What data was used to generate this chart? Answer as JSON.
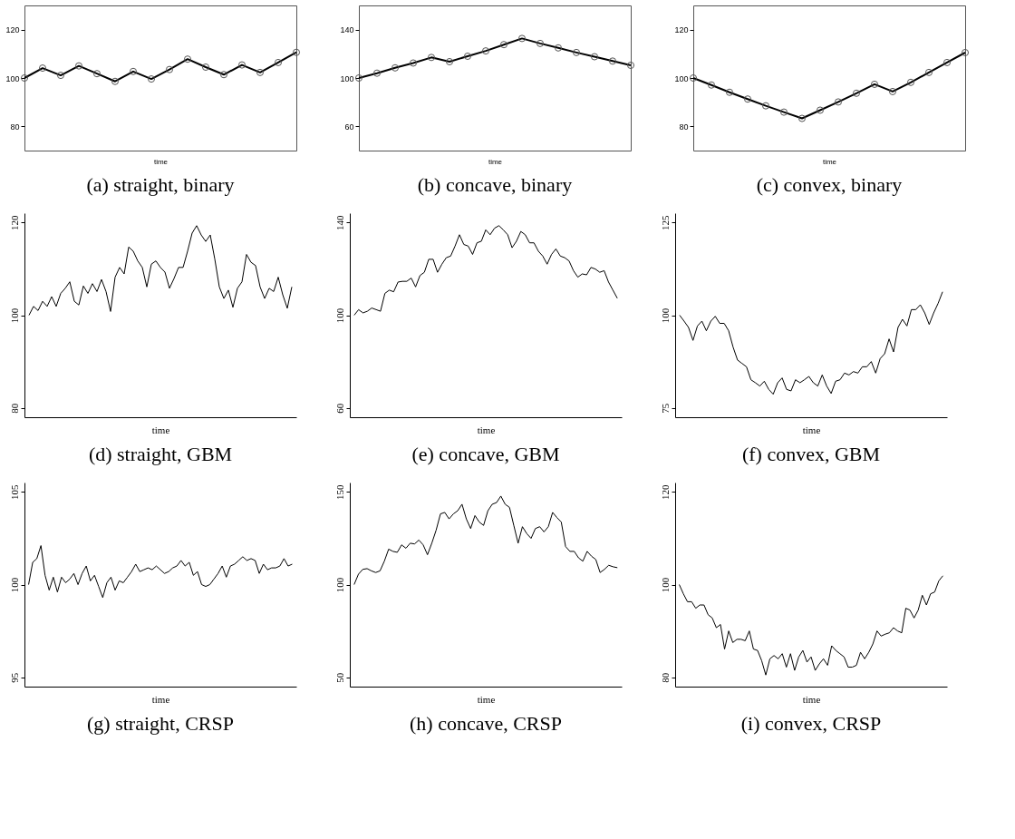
{
  "chart_data": [
    {
      "type": "line",
      "title": "(a) straight, binary",
      "xlabel": "time",
      "categories": [
        null,
        null,
        null,
        null,
        null,
        null,
        null,
        null,
        null,
        null,
        null,
        null,
        null,
        null,
        null,
        null
      ],
      "marker": "circle",
      "tick_labels": "y",
      "grid": false,
      "ylim": [
        70,
        130
      ],
      "yticks": [
        80,
        100,
        120
      ],
      "series": [
        {
          "color": "#000000",
          "values": [
            100,
            104.1,
            101.1,
            105,
            101.8,
            98.6,
            102.7,
            99.6,
            103.5,
            107.8,
            104.5,
            101.4,
            105.4,
            102.3,
            106.4,
            110.6
          ]
        }
      ]
    },
    {
      "type": "line",
      "title": "(b) concave, binary",
      "xlabel": "time",
      "categories": [
        null,
        null,
        null,
        null,
        null,
        null,
        null,
        null,
        null,
        null,
        null,
        null,
        null,
        null,
        null,
        null
      ],
      "marker": "circle",
      "tick_labels": "y",
      "grid": false,
      "ylim": [
        40,
        160
      ],
      "yticks": [
        60,
        100,
        140
      ],
      "series": [
        {
          "color": "#000000",
          "values": [
            100,
            104,
            108.4,
            112.4,
            117,
            113.5,
            118,
            122.4,
            127.6,
            132.7,
            128.6,
            124.9,
            121.1,
            117.6,
            114,
            110.5
          ]
        }
      ]
    },
    {
      "type": "line",
      "title": "(c) convex, binary",
      "xlabel": "time",
      "categories": [
        null,
        null,
        null,
        null,
        null,
        null,
        null,
        null,
        null,
        null,
        null,
        null,
        null,
        null,
        null,
        null
      ],
      "marker": "circle",
      "tick_labels": "y",
      "grid": false,
      "ylim": [
        70,
        130
      ],
      "yticks": [
        80,
        100,
        120
      ],
      "series": [
        {
          "color": "#000000",
          "values": [
            100,
            97.1,
            94.1,
            91.3,
            88.5,
            85.9,
            83.3,
            86.7,
            90.1,
            93.7,
            97.4,
            94.4,
            98.2,
            102.3,
            106.4,
            110.5
          ]
        }
      ]
    },
    {
      "type": "line",
      "title": "(d) straight, GBM",
      "xlabel": "time",
      "categories": [
        null,
        null,
        null,
        null,
        null,
        null,
        null,
        null,
        null,
        null,
        null,
        null,
        null,
        null,
        null,
        null,
        null,
        null,
        null,
        null,
        null,
        null,
        null,
        null,
        null,
        null,
        null,
        null,
        null,
        null,
        null,
        null,
        null,
        null,
        null,
        null,
        null,
        null,
        null,
        null,
        null,
        null,
        null,
        null,
        null,
        null,
        null,
        null,
        null,
        null,
        null,
        null,
        null,
        null,
        null,
        null,
        null,
        null,
        null
      ],
      "tick_labels": "y",
      "grid": false,
      "ylim": [
        78,
        122
      ],
      "yticks": [
        80,
        100,
        120
      ],
      "series": [
        {
          "color": "#000000",
          "values": [
            100,
            101.9,
            101,
            103,
            101.9,
            104,
            101.9,
            104.7,
            105.8,
            107.2,
            103,
            102.2,
            106.3,
            104.7,
            106.8,
            105.1,
            107.7,
            105.1,
            100.8,
            108.2,
            110.3,
            108.9,
            114.7,
            113.8,
            111.7,
            110.3,
            106.1,
            111,
            111.7,
            110.3,
            109.3,
            105.8,
            107.9,
            110.3,
            110.3,
            113.8,
            117.7,
            119.3,
            117.3,
            115.9,
            117.3,
            112.1,
            106.1,
            103.6,
            105.4,
            101.7,
            105.8,
            107.2,
            113.1,
            111.4,
            110.7,
            106.1,
            103.6,
            105.8,
            105.1,
            108.2,
            104.4,
            101.5,
            106.1
          ]
        }
      ]
    },
    {
      "type": "line",
      "title": "(e) concave, GBM",
      "xlabel": "time",
      "categories": [
        null,
        null,
        null,
        null,
        null,
        null,
        null,
        null,
        null,
        null,
        null,
        null,
        null,
        null,
        null,
        null,
        null,
        null,
        null,
        null,
        null,
        null,
        null,
        null,
        null,
        null,
        null,
        null,
        null,
        null,
        null,
        null,
        null,
        null,
        null,
        null,
        null,
        null,
        null,
        null,
        null,
        null,
        null,
        null,
        null,
        null,
        null,
        null,
        null,
        null,
        null,
        null,
        null,
        null,
        null,
        null,
        null,
        null,
        null,
        null,
        null
      ],
      "tick_labels": "y",
      "grid": false,
      "ylim": [
        56,
        144
      ],
      "yticks": [
        60,
        100,
        140
      ],
      "series": [
        {
          "color": "#000000",
          "values": [
            100,
            102.4,
            101,
            101.7,
            103.1,
            102.4,
            101.7,
            109.4,
            110.8,
            110.1,
            114.3,
            114.6,
            114.6,
            116,
            112.2,
            117.1,
            118.5,
            124.1,
            124.1,
            118.5,
            122,
            124.8,
            125.5,
            129.8,
            134.7,
            130.5,
            129.8,
            126.2,
            131.2,
            131.9,
            136.8,
            134.7,
            137.5,
            138.6,
            136.8,
            134.7,
            129.1,
            131.9,
            136.1,
            134.7,
            131.2,
            131.2,
            127.6,
            125.5,
            122,
            126.2,
            128.6,
            125.5,
            124.8,
            123.4,
            119.2,
            116.4,
            117.8,
            117.4,
            120.6,
            119.9,
            118.5,
            119.2,
            114.3,
            110.8,
            107.3
          ]
        }
      ]
    },
    {
      "type": "line",
      "title": "(f) convex, GBM",
      "xlabel": "time",
      "categories": [
        null,
        null,
        null,
        null,
        null,
        null,
        null,
        null,
        null,
        null,
        null,
        null,
        null,
        null,
        null,
        null,
        null,
        null,
        null,
        null,
        null,
        null,
        null,
        null,
        null,
        null,
        null,
        null,
        null,
        null,
        null,
        null,
        null,
        null,
        null,
        null,
        null,
        null,
        null,
        null,
        null,
        null,
        null,
        null,
        null,
        null,
        null,
        null,
        null,
        null,
        null,
        null,
        null,
        null,
        null,
        null,
        null,
        null,
        null,
        null
      ],
      "tick_labels": "y",
      "grid": false,
      "ylim": [
        72.5,
        127.5
      ],
      "yticks": [
        75,
        100,
        125
      ],
      "series": [
        {
          "color": "#000000",
          "values": [
            100,
            98.4,
            96.7,
            93.2,
            97.1,
            98.4,
            95.8,
            98.4,
            99.7,
            97.8,
            97.8,
            95.8,
            91.4,
            87.9,
            87,
            86.1,
            82.6,
            81.8,
            80.9,
            82.2,
            80,
            78.7,
            81.8,
            83.1,
            80,
            79.6,
            82.6,
            81.8,
            82.6,
            83.5,
            81.8,
            80.9,
            83.9,
            80.9,
            78.9,
            82.2,
            82.6,
            84.4,
            83.9,
            84.8,
            84.4,
            86.1,
            86.1,
            87.5,
            84.4,
            88.3,
            89.6,
            93.6,
            90.1,
            96.7,
            98.9,
            97.1,
            101.5,
            101.5,
            102.8,
            100.6,
            97.5,
            100.6,
            103.2,
            106.3
          ]
        }
      ]
    },
    {
      "type": "line",
      "title": "(g) straight, CRSP",
      "xlabel": "time",
      "categories": [
        null,
        null,
        null,
        null,
        null,
        null,
        null,
        null,
        null,
        null,
        null,
        null,
        null,
        null,
        null,
        null,
        null,
        null,
        null,
        null,
        null,
        null,
        null,
        null,
        null,
        null,
        null,
        null,
        null,
        null,
        null,
        null,
        null,
        null,
        null,
        null,
        null,
        null,
        null,
        null,
        null,
        null,
        null,
        null,
        null,
        null,
        null,
        null,
        null,
        null,
        null,
        null,
        null,
        null,
        null,
        null,
        null,
        null,
        null,
        null,
        null,
        null,
        null,
        null,
        null
      ],
      "tick_labels": "y",
      "grid": false,
      "ylim": [
        94.5,
        105.5
      ],
      "yticks": [
        95,
        100,
        105
      ],
      "series": [
        {
          "color": "#000000",
          "values": [
            100,
            101.2,
            101.4,
            102.1,
            100.5,
            99.7,
            100.4,
            99.6,
            100.4,
            100.1,
            100.3,
            100.6,
            100,
            100.6,
            101,
            100.2,
            100.5,
            99.9,
            99.3,
            100.1,
            100.4,
            99.7,
            100.2,
            100.1,
            100.4,
            100.7,
            101.1,
            100.7,
            100.8,
            100.9,
            100.8,
            101,
            100.8,
            100.6,
            100.7,
            100.9,
            101,
            101.3,
            101,
            101.2,
            100.5,
            100.7,
            100,
            99.9,
            100,
            100.3,
            100.6,
            101,
            100.4,
            101,
            101.1,
            101.3,
            101.5,
            101.3,
            101.4,
            101.3,
            100.6,
            101.1,
            100.8,
            100.9,
            100.9,
            101,
            101.4,
            101,
            101.1
          ]
        }
      ]
    },
    {
      "type": "line",
      "title": "(h) concave, CRSP",
      "xlabel": "time",
      "categories": [
        null,
        null,
        null,
        null,
        null,
        null,
        null,
        null,
        null,
        null,
        null,
        null,
        null,
        null,
        null,
        null,
        null,
        null,
        null,
        null,
        null,
        null,
        null,
        null,
        null,
        null,
        null,
        null,
        null,
        null,
        null,
        null,
        null,
        null,
        null,
        null,
        null,
        null,
        null,
        null,
        null,
        null,
        null,
        null,
        null,
        null,
        null,
        null,
        null,
        null,
        null,
        null,
        null,
        null,
        null,
        null,
        null,
        null,
        null,
        null,
        null,
        null
      ],
      "tick_labels": "y",
      "grid": false,
      "ylim": [
        45,
        155
      ],
      "yticks": [
        50,
        100,
        150
      ],
      "series": [
        {
          "color": "#000000",
          "values": [
            100,
            105.6,
            108.2,
            108.6,
            107.4,
            106.5,
            107.4,
            112.6,
            119.1,
            117.9,
            117.4,
            121.4,
            119.6,
            122.3,
            121.9,
            124,
            121.4,
            116.1,
            122.3,
            129.3,
            138.1,
            138.9,
            135.4,
            138.1,
            139.8,
            143.3,
            135.4,
            130.2,
            137.2,
            133.7,
            131.9,
            139.8,
            143.3,
            144.2,
            147.7,
            143.3,
            141.6,
            131.9,
            122.3,
            131.2,
            127.5,
            124.9,
            130.2,
            131.2,
            128.4,
            131.2,
            138.9,
            136.1,
            133.7,
            120.5,
            117.9,
            117.9,
            114.4,
            112.6,
            117.9,
            115.3,
            113.5,
            106.5,
            108.2,
            110.4,
            109.6,
            109.1
          ]
        }
      ]
    },
    {
      "type": "line",
      "title": "(i) convex, CRSP",
      "xlabel": "time",
      "categories": [
        null,
        null,
        null,
        null,
        null,
        null,
        null,
        null,
        null,
        null,
        null,
        null,
        null,
        null,
        null,
        null,
        null,
        null,
        null,
        null,
        null,
        null,
        null,
        null,
        null,
        null,
        null,
        null,
        null,
        null,
        null,
        null,
        null,
        null,
        null,
        null,
        null,
        null,
        null,
        null,
        null,
        null,
        null,
        null,
        null,
        null,
        null,
        null,
        null,
        null,
        null,
        null,
        null,
        null,
        null,
        null,
        null,
        null,
        null,
        null,
        null,
        null,
        null,
        null,
        null
      ],
      "tick_labels": "y",
      "grid": false,
      "ylim": [
        78,
        122
      ],
      "yticks": [
        80,
        100,
        120
      ],
      "series": [
        {
          "color": "#000000",
          "values": [
            100,
            98,
            96.3,
            96.3,
            94.9,
            95.6,
            95.6,
            93.5,
            92.8,
            90.7,
            91.4,
            86.1,
            90,
            87.5,
            88.2,
            88.2,
            87.9,
            90,
            86.1,
            85.8,
            83.6,
            80.5,
            84,
            84.7,
            84,
            85.1,
            82.2,
            85.1,
            81.5,
            84.4,
            85.8,
            83.3,
            84.4,
            81.5,
            82.9,
            84,
            82.6,
            86.8,
            85.8,
            85.1,
            84.4,
            82.2,
            82.2,
            82.6,
            85.4,
            84,
            85.4,
            87.2,
            90,
            88.9,
            89.3,
            89.6,
            90.7,
            90,
            89.6,
            94.9,
            94.5,
            92.8,
            94.5,
            97.7,
            95.6,
            98,
            98.4,
            100.8,
            101.9
          ]
        }
      ]
    }
  ]
}
